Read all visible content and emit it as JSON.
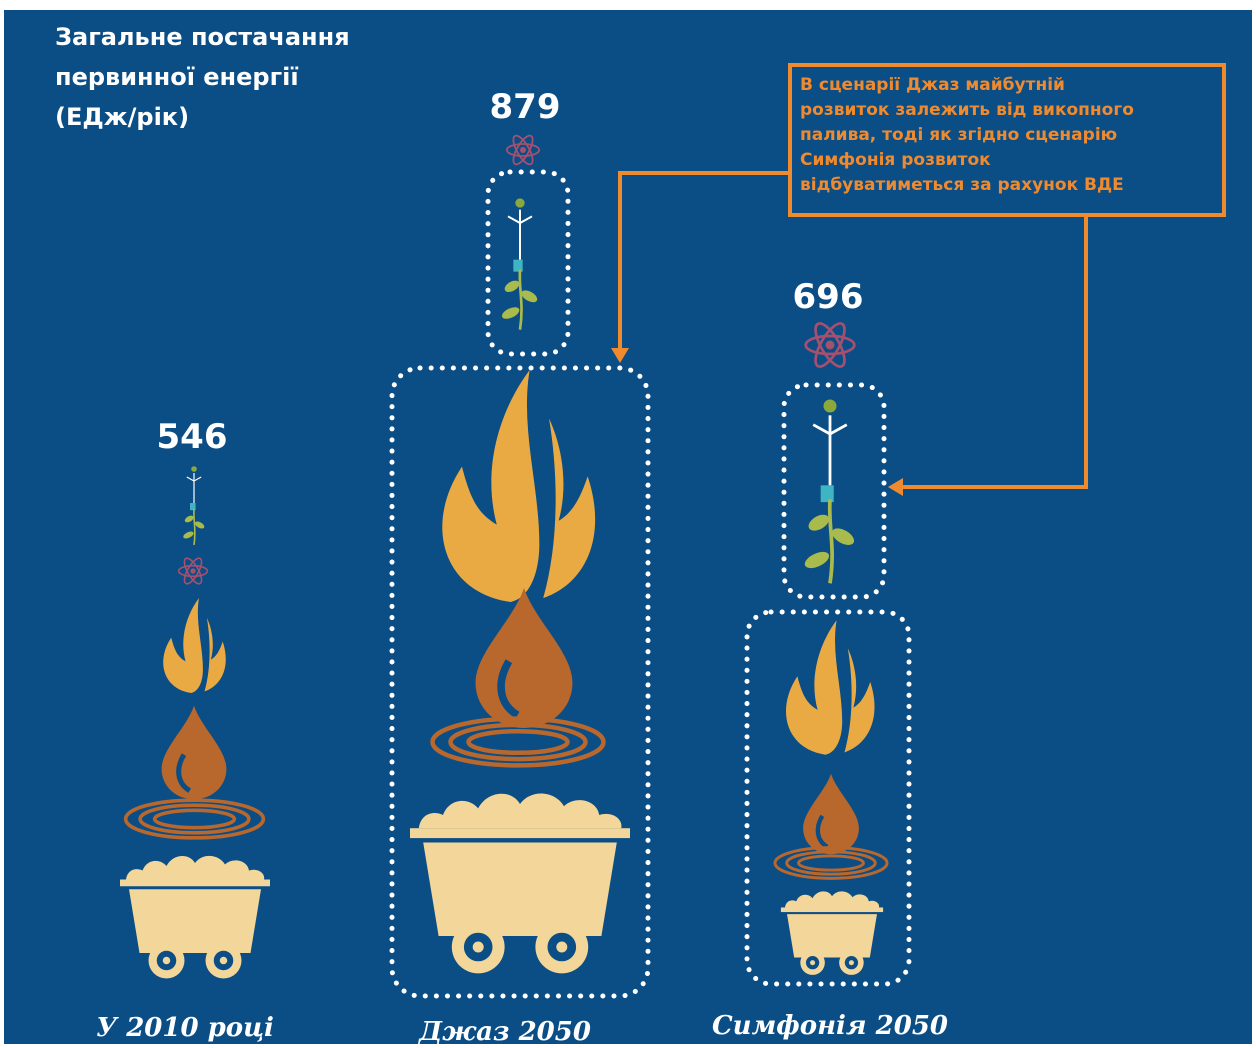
{
  "title": [
    "Загальне постачання",
    "первинної енергії",
    "(ЕДж/рік)"
  ],
  "columns": [
    {
      "value": 546,
      "label": "У 2010 році"
    },
    {
      "value": 879,
      "label": "Джаз 2050"
    },
    {
      "value": 696,
      "label": "Симфонія 2050"
    }
  ],
  "note": [
    "В сценарії Джаз майбутній",
    "розвиток залежить від викопного",
    "палива, тоді як згідно сценарію",
    "Симфонія розвиток",
    "відбуватиметься за рахунок ВДЕ"
  ]
}
